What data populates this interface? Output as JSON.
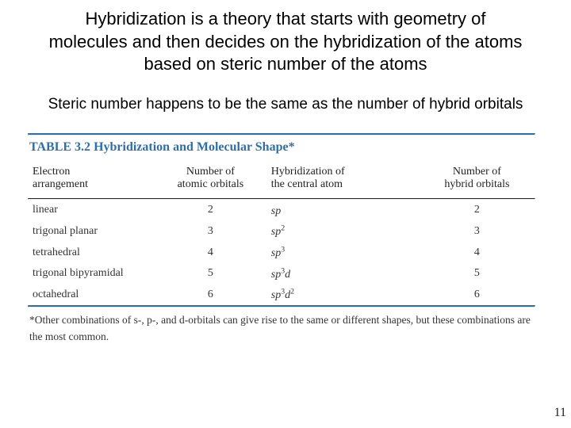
{
  "slide": {
    "title": "Hybridization is a theory that starts with geometry of molecules and then decides on the hybridization of the atoms based on steric number of the atoms",
    "subtitle": "Steric number happens to be the same as the number of hybrid orbitals",
    "page_number": "11"
  },
  "table": {
    "type": "table",
    "caption_label": "TABLE 3.2",
    "caption_text": "Hybridization and Molecular Shape*",
    "caption_color": "#2e6fa7",
    "rule_thick_color": "#2e6fa7",
    "rule_thin_color": "#222222",
    "columns": [
      {
        "header": "Electron\narrangement",
        "width_pct": 25,
        "align": "left"
      },
      {
        "header": "Number of\natomic orbitals",
        "width_pct": 22,
        "align": "center"
      },
      {
        "header": "Hybridization of\nthe central atom",
        "width_pct": 30,
        "align": "left"
      },
      {
        "header": "Number of\nhybrid orbitals",
        "width_pct": 23,
        "align": "center"
      }
    ],
    "rows": [
      {
        "arrangement": "linear",
        "atomic": "2",
        "hybrid_base": "sp",
        "hybrid_sup": "",
        "hybrid_d": "",
        "hybrid_dsup": "",
        "norb": "2"
      },
      {
        "arrangement": "trigonal planar",
        "atomic": "3",
        "hybrid_base": "sp",
        "hybrid_sup": "2",
        "hybrid_d": "",
        "hybrid_dsup": "",
        "norb": "3"
      },
      {
        "arrangement": "tetrahedral",
        "atomic": "4",
        "hybrid_base": "sp",
        "hybrid_sup": "3",
        "hybrid_d": "",
        "hybrid_dsup": "",
        "norb": "4"
      },
      {
        "arrangement": "trigonal bipyramidal",
        "atomic": "5",
        "hybrid_base": "sp",
        "hybrid_sup": "3",
        "hybrid_d": "d",
        "hybrid_dsup": "",
        "norb": "5"
      },
      {
        "arrangement": "octahedral",
        "atomic": "6",
        "hybrid_base": "sp",
        "hybrid_sup": "3",
        "hybrid_d": "d",
        "hybrid_dsup": "2",
        "norb": "6"
      }
    ],
    "footnote": "*Other combinations of s-, p-, and d-orbitals can give rise to the same or different shapes, but these combinations are the most common.",
    "body_font": "Times New Roman",
    "body_fontsize_pt": 11,
    "header_fontsize_pt": 11,
    "text_color": "#222222"
  },
  "colors": {
    "background": "#ffffff",
    "title_text": "#000000",
    "accent_blue": "#2e6fa7"
  },
  "typography": {
    "title_font": "Comic Sans MS",
    "title_fontsize_pt": 17,
    "subtitle_fontsize_pt": 15,
    "table_font": "Times New Roman"
  }
}
